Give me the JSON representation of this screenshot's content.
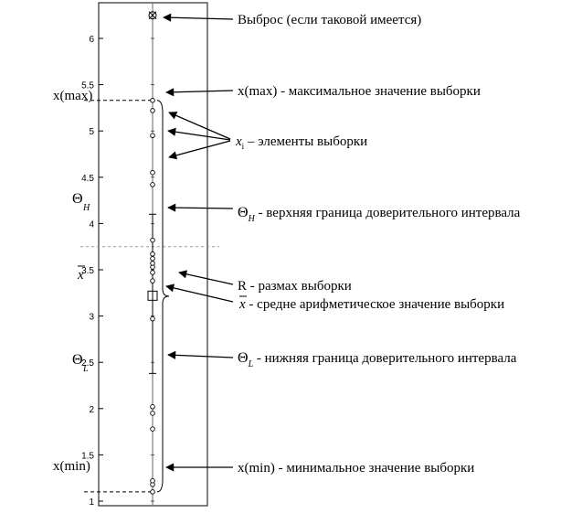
{
  "y_axis": {
    "ticks": [
      "1",
      "1.5",
      "2",
      "2.5",
      "3",
      "3.5",
      "4",
      "4.5",
      "5",
      "5.5",
      "6"
    ]
  },
  "left_labels": {
    "xmax": "x(max)",
    "theta_symbol": "Θ",
    "theta_h_sub": "H",
    "xbar": "x",
    "theta_l_sub": "L",
    "xmin": "x(min)"
  },
  "annotations": {
    "outlier": "Выброс (если таковой имеется)",
    "xmax": "x(max) - максимальное значение выборки",
    "elements_var": "x",
    "elements_sub": "i",
    "elements_text": " – элементы выборки",
    "theta_symbol": "Θ",
    "theta_h_sub": "H",
    "theta_h_text": " - верхняя граница доверительного интервала",
    "range": "R - размах выборки",
    "mean_var": "x",
    "mean_text": " - средне арифметическое значение выборки",
    "theta_l_sub": "L",
    "theta_l_text": " - нижняя граница доверительного интервала",
    "xmin": "x(min) - минимальное значение выборки"
  },
  "chart_data": {
    "type": "scatter",
    "ylim": [
      0.75,
      6.4
    ],
    "sample_points": [
      1.1,
      1.18,
      1.22,
      1.78,
      1.95,
      2.02,
      2.97,
      3.38,
      3.47,
      3.53,
      3.57,
      3.62,
      3.67,
      3.82,
      4.42,
      4.55,
      4.95,
      5.22,
      5.33
    ],
    "outlier": 6.25,
    "x_min": 1.1,
    "x_max": 5.33,
    "mean": 3.22,
    "theta_h": 4.1,
    "theta_l": 2.38,
    "dashed_reference": 3.75
  }
}
